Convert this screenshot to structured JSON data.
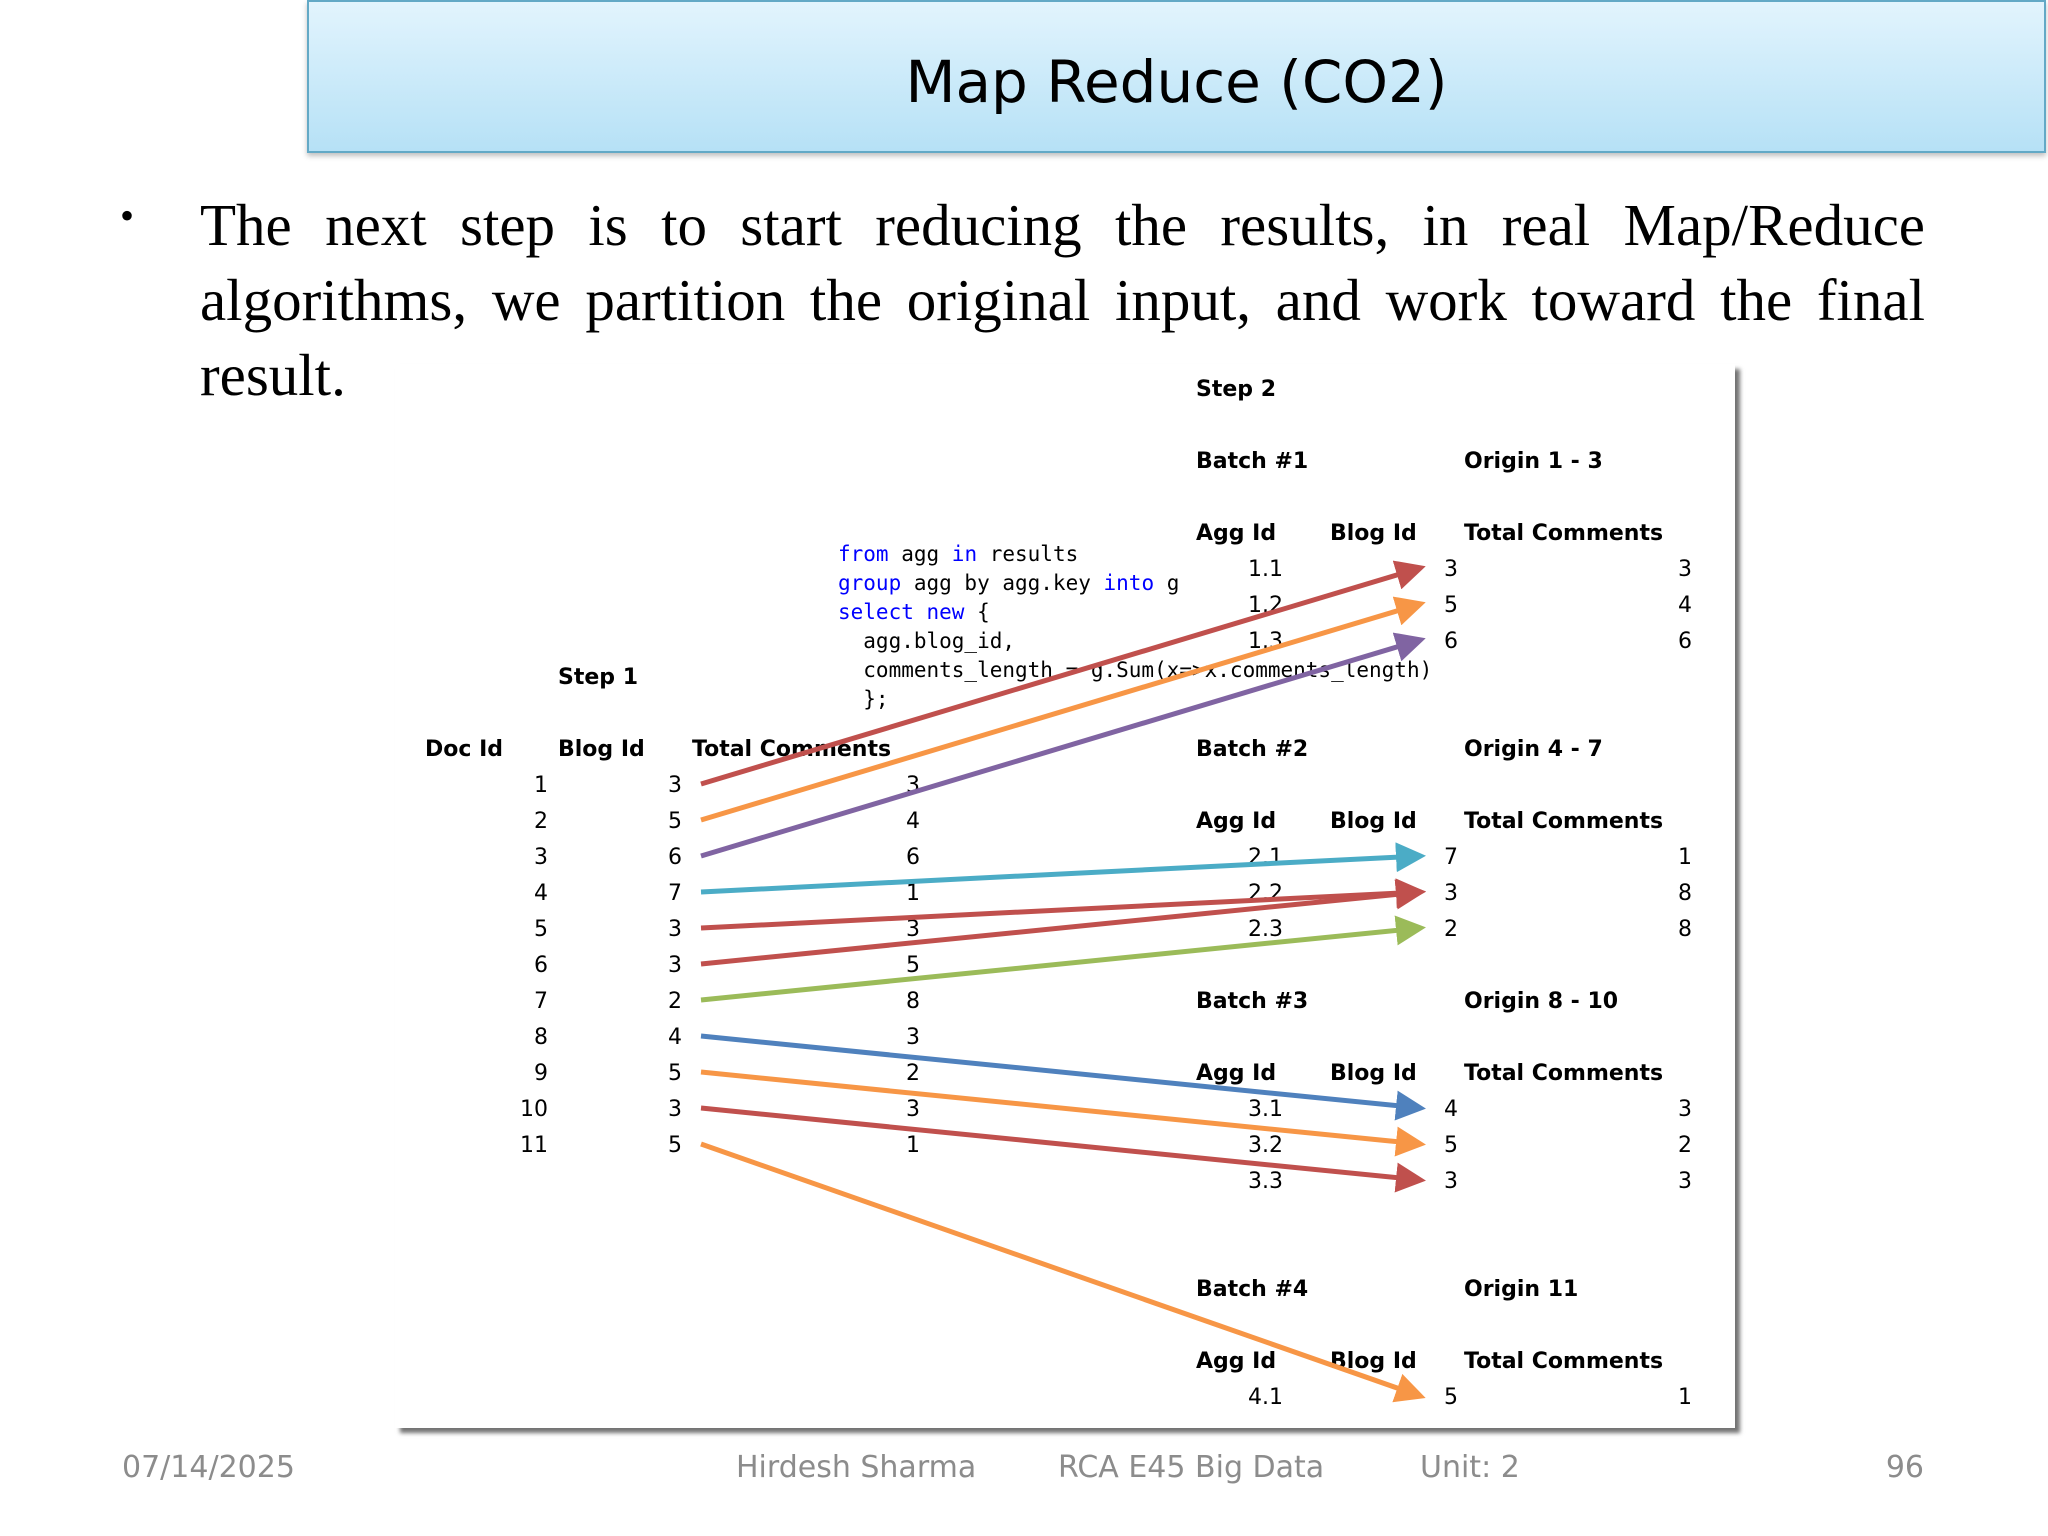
{
  "slide": {
    "title": "Map Reduce (CO2)",
    "bullet": "The next step is to start reducing the results, in real Map/Reduce algorithms, we partition the original input, and work toward the final result."
  },
  "figure": {
    "step1": {
      "label": "Step 1",
      "headers": [
        "Doc Id",
        "Blog Id",
        "Total Comments"
      ],
      "rows": [
        [
          "1",
          "3",
          "3"
        ],
        [
          "2",
          "5",
          "4"
        ],
        [
          "3",
          "6",
          "6"
        ],
        [
          "4",
          "7",
          "1"
        ],
        [
          "5",
          "3",
          "3"
        ],
        [
          "6",
          "3",
          "5"
        ],
        [
          "7",
          "2",
          "8"
        ],
        [
          "8",
          "4",
          "3"
        ],
        [
          "9",
          "5",
          "2"
        ],
        [
          "10",
          "3",
          "3"
        ],
        [
          "11",
          "5",
          "1"
        ]
      ]
    },
    "code": [
      [
        [
          "from",
          "#0000ff"
        ],
        [
          " agg ",
          "#000000"
        ],
        [
          "in",
          "#0000ff"
        ],
        [
          " results",
          "#000000"
        ]
      ],
      [
        [
          "group",
          "#0000ff"
        ],
        [
          " agg by agg.key ",
          "#000000"
        ],
        [
          "into",
          "#0000ff"
        ],
        [
          " g",
          "#000000"
        ]
      ],
      [
        [
          "select",
          "#0000ff"
        ],
        [
          " ",
          "#000000"
        ],
        [
          "new",
          "#0000ff"
        ],
        [
          " {",
          "#000000"
        ]
      ],
      [
        [
          "  agg.blog_id,",
          "#000000"
        ]
      ],
      [
        [
          "  comments_length = g.Sum(x=>x.comments_length)",
          "#000000"
        ]
      ],
      [
        [
          "  };",
          "#000000"
        ]
      ]
    ],
    "step2": {
      "label": "Step 2",
      "headers": [
        "Agg Id",
        "Blog Id",
        "Total Comments"
      ],
      "batches": [
        {
          "label": "Batch #1",
          "origin": "Origin 1 - 3",
          "rows": [
            [
              "1.1",
              "3",
              "3"
            ],
            [
              "1.2",
              "5",
              "4"
            ],
            [
              "1.3",
              "6",
              "6"
            ]
          ]
        },
        {
          "label": "Batch #2",
          "origin": "Origin 4 - 7",
          "rows": [
            [
              "2.1",
              "7",
              "1"
            ],
            [
              "2.2",
              "3",
              "8"
            ],
            [
              "2.3",
              "2",
              "8"
            ]
          ]
        },
        {
          "label": "Batch #3",
          "origin": "Origin 8  - 10",
          "rows": [
            [
              "3.1",
              "4",
              "3"
            ],
            [
              "3.2",
              "5",
              "2"
            ],
            [
              "3.3",
              "3",
              "3"
            ]
          ]
        },
        {
          "label": "Batch #4",
          "origin": "Origin 11",
          "rows": [
            [
              "4.1",
              "5",
              "1"
            ]
          ]
        }
      ]
    },
    "arrows": [
      {
        "from": 1,
        "to": [
          1,
          1
        ],
        "color": "#c0504d"
      },
      {
        "from": 2,
        "to": [
          1,
          2
        ],
        "color": "#f79646"
      },
      {
        "from": 3,
        "to": [
          1,
          3
        ],
        "color": "#8064a2"
      },
      {
        "from": 4,
        "to": [
          2,
          1
        ],
        "color": "#4bacc6"
      },
      {
        "from": 5,
        "to": [
          2,
          2
        ],
        "color": "#c0504d"
      },
      {
        "from": 6,
        "to": [
          2,
          2
        ],
        "color": "#c0504d"
      },
      {
        "from": 7,
        "to": [
          2,
          3
        ],
        "color": "#9bbb59"
      },
      {
        "from": 8,
        "to": [
          3,
          1
        ],
        "color": "#4f81bd"
      },
      {
        "from": 9,
        "to": [
          3,
          2
        ],
        "color": "#f79646"
      },
      {
        "from": 10,
        "to": [
          3,
          3
        ],
        "color": "#c0504d"
      },
      {
        "from": 11,
        "to": [
          4,
          1
        ],
        "color": "#f79646"
      }
    ]
  },
  "footer": {
    "date": "07/14/2025",
    "author": "Hirdesh Sharma",
    "course": "RCA E45 Big Data",
    "unit": "Unit: 2",
    "page": "96"
  }
}
